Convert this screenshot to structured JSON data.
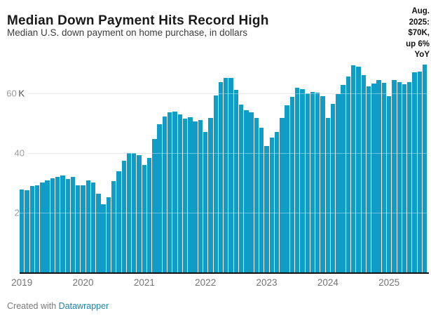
{
  "header": {
    "title": "Median Down Payment Hits Record High",
    "subtitle": "Median U.S. down payment on home purchase, in dollars"
  },
  "annotation": {
    "text": "Aug. 2025: $70K, up 6% YoY",
    "lines": [
      "Aug.",
      "2025:",
      "$70K,",
      "up 6%",
      "YoY"
    ]
  },
  "footer": {
    "prefix": "Created with ",
    "link_label": "Datawrapper"
  },
  "colors": {
    "bar": "#0f9cc7",
    "gridline": "#dcdcdc",
    "axis": "#111111",
    "link": "#1d81ab"
  },
  "chart_data": {
    "type": "bar",
    "title": "Median Down Payment Hits Record High",
    "subtitle": "Median U.S. down payment on home purchase, in dollars",
    "unit": "USD thousands",
    "x_unit": "month",
    "start": "2019-01",
    "end": "2025-08",
    "ylim": [
      0,
      73
    ],
    "grid": "horizontal",
    "annotation": "Aug. 2025: $70K, up 6% YoY",
    "yticks": [
      {
        "value": 20,
        "label": "20",
        "unit": ""
      },
      {
        "value": 40,
        "label": "40",
        "unit": ""
      },
      {
        "value": 60,
        "label": "60",
        "unit": "K"
      }
    ],
    "xticks": [
      "2019",
      "2020",
      "2021",
      "2022",
      "2023",
      "2024",
      "2025"
    ],
    "values_by_year": {
      "2019": [
        28.0,
        27.8,
        29.2,
        29.5,
        30.4,
        31.0,
        31.8,
        32.3,
        32.7,
        31.5,
        32.3,
        29.3
      ],
      "2020": [
        29.3,
        31.0,
        30.3,
        26.5,
        23.0,
        25.5,
        30.8,
        34.1,
        37.6,
        40.2,
        40.2,
        39.6
      ],
      "2021": [
        36.2,
        38.5,
        44.9,
        50.0,
        52.5,
        53.9,
        54.1,
        53.2,
        51.7,
        52.2,
        50.8,
        51.4
      ],
      "2022": [
        47.2,
        51.9,
        59.6,
        64.1,
        65.3,
        65.3,
        61.3,
        56.5,
        54.5,
        53.9,
        52.1,
        48.8
      ],
      "2023": [
        42.6,
        45.4,
        47.4,
        51.9,
        56.2,
        59.0,
        62.1,
        61.7,
        60.2,
        60.8,
        60.5,
        59.2
      ],
      "2024": [
        52.1,
        56.6,
        60.0,
        63.1,
        65.8,
        69.7,
        69.1,
        66.3,
        62.5,
        63.5,
        64.8,
        63.7
      ],
      "2025": [
        59.2,
        64.7,
        64.1,
        63.3,
        63.9,
        67.4,
        67.6,
        70.0
      ]
    }
  }
}
